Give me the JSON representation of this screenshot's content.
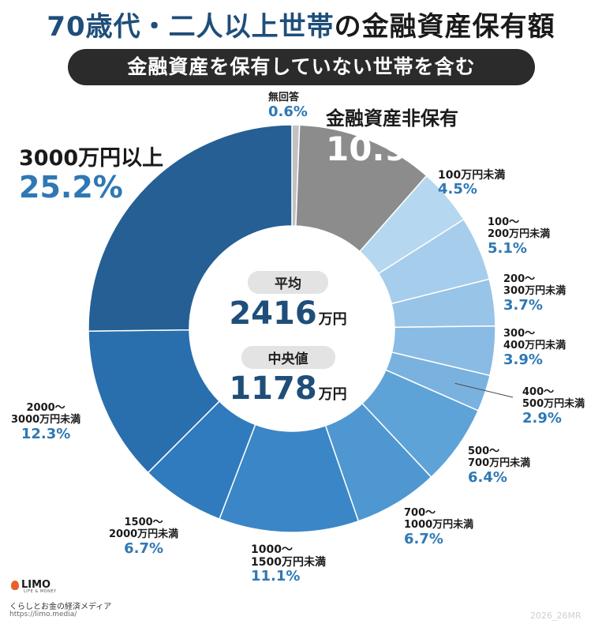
{
  "header": {
    "title_main": "70歳代・二人以上世帯",
    "title_rest": "の金融資産保有額",
    "subtitle": "金融資産を保有していない世帯を含む"
  },
  "chart_data": {
    "type": "pie",
    "style": "donut",
    "categories": [
      "無回答",
      "金融資産非保有",
      "100万円未満",
      "100～200万円未満",
      "200～300万円未満",
      "300～400万円未満",
      "400～500万円未満",
      "500～700万円未満",
      "700～1000万円未満",
      "1000～1500万円未満",
      "1500～2000万円未満",
      "2000～3000万円未満",
      "3000万円以上"
    ],
    "values": [
      0.6,
      10.9,
      4.5,
      5.1,
      3.7,
      3.9,
      2.9,
      6.4,
      6.7,
      11.1,
      6.7,
      12.3,
      25.2
    ],
    "colors": [
      "#c2c2c2",
      "#8c8c8c",
      "#b6d7f0",
      "#a7cdec",
      "#98c4e8",
      "#89bbe4",
      "#7ab2df",
      "#5ea3d8",
      "#4f97d1",
      "#3b86c6",
      "#2f7bbd",
      "#2a6fad",
      "#255f94"
    ],
    "labels": [
      {
        "cat": [
          "無回答"
        ],
        "pct": "0.6%"
      },
      {
        "cat": [
          "金融資産非保有"
        ],
        "pct": "10.9%"
      },
      {
        "cat": [
          "100万円未満"
        ],
        "pct": "4.5%"
      },
      {
        "cat": [
          "100～",
          "200万円未満"
        ],
        "pct": "5.1%"
      },
      {
        "cat": [
          "200～",
          "300万円未満"
        ],
        "pct": "3.7%"
      },
      {
        "cat": [
          "300～",
          "400万円未満"
        ],
        "pct": "3.9%"
      },
      {
        "cat": [
          "400～",
          "500万円未満"
        ],
        "pct": "2.9%"
      },
      {
        "cat": [
          "500～",
          "700万円未満"
        ],
        "pct": "6.4%"
      },
      {
        "cat": [
          "700～",
          "1000万円未満"
        ],
        "pct": "6.7%"
      },
      {
        "cat": [
          "1000～",
          "1500万円未満"
        ],
        "pct": "11.1%"
      },
      {
        "cat": [
          "1500～",
          "2000万円未満"
        ],
        "pct": "6.7%"
      },
      {
        "cat": [
          "2000～",
          "3000万円未満"
        ],
        "pct": "12.3%"
      },
      {
        "cat": [
          "3000万円以上"
        ],
        "pct": "25.2%"
      }
    ],
    "center": {
      "average_label": "平均",
      "average_value": "2416",
      "median_label": "中央値",
      "median_value": "1178",
      "unit": "万円"
    }
  },
  "footer": {
    "brand": "LIMO",
    "brand_sub": "LIFE & MONEY",
    "tagline": "くらしとお金の経済メディア",
    "url": "https://limo.media/",
    "code": "2026_26MR"
  }
}
